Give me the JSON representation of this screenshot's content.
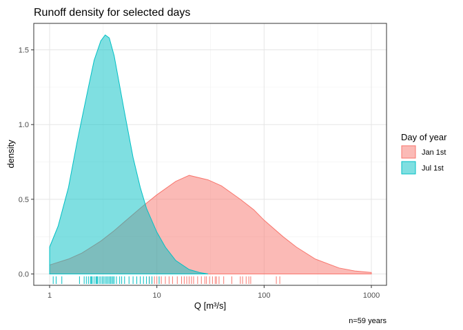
{
  "chart_data": {
    "type": "area",
    "title": "Runoff density for selected days",
    "xlabel": "Q [m³/s]",
    "ylabel": "density",
    "caption": "n=59 years",
    "x_scale": "log10",
    "xlim": [
      1,
      1000
    ],
    "ylim": [
      0,
      1.6
    ],
    "x_ticks": [
      {
        "value": 1,
        "label": "1"
      },
      {
        "value": 10,
        "label": "10"
      },
      {
        "value": 100,
        "label": "100"
      },
      {
        "value": 1000,
        "label": "1000"
      }
    ],
    "y_ticks": [
      {
        "value": 0,
        "label": "0.0"
      },
      {
        "value": 0.5,
        "label": "0.5"
      },
      {
        "value": 1.0,
        "label": "1.0"
      },
      {
        "value": 1.5,
        "label": "1.5"
      }
    ],
    "grid": true,
    "legend": {
      "title": "Day of year",
      "position": "right"
    },
    "series": [
      {
        "name": "Jan 1st",
        "color": "#F8766D",
        "x": [
          1,
          1.5,
          2,
          3,
          4,
          5,
          7,
          10,
          15,
          20,
          30,
          40,
          60,
          80,
          100,
          150,
          200,
          300,
          500,
          700,
          1000
        ],
        "density": [
          0.06,
          0.1,
          0.14,
          0.22,
          0.29,
          0.35,
          0.44,
          0.53,
          0.62,
          0.66,
          0.63,
          0.59,
          0.5,
          0.43,
          0.36,
          0.25,
          0.18,
          0.1,
          0.04,
          0.02,
          0.01
        ],
        "rug": [
          8.5,
          9,
          9.5,
          10,
          10.5,
          11,
          12,
          13,
          14,
          15.5,
          17,
          18,
          19,
          20,
          21,
          22,
          24,
          26,
          28,
          29,
          31,
          33,
          35,
          36,
          38,
          42,
          50,
          60,
          63,
          68,
          72,
          75,
          130,
          140
        ]
      },
      {
        "name": "Jul 1st",
        "color": "#00BFC4",
        "x": [
          1,
          1.2,
          1.5,
          1.8,
          2,
          2.3,
          2.6,
          3,
          3.3,
          3.6,
          4,
          4.5,
          5,
          6,
          7,
          8,
          10,
          12,
          15,
          20,
          25,
          30
        ],
        "density": [
          0.18,
          0.32,
          0.58,
          0.88,
          1.04,
          1.25,
          1.43,
          1.56,
          1.6,
          1.58,
          1.46,
          1.26,
          1.08,
          0.78,
          0.58,
          0.44,
          0.28,
          0.18,
          0.09,
          0.03,
          0.01,
          0.0
        ],
        "rug": [
          1.08,
          1.15,
          1.3,
          1.9,
          2.1,
          2.2,
          2.3,
          2.4,
          2.45,
          2.5,
          2.6,
          2.7,
          2.75,
          2.8,
          2.9,
          3.0,
          3.1,
          3.2,
          3.3,
          3.4,
          3.5,
          3.6,
          3.7,
          3.8,
          3.9,
          4.0,
          4.2,
          4.5,
          4.7,
          5.0,
          5.5,
          6.0,
          6.5,
          7.0,
          7.5,
          8.0,
          8.5,
          9.0,
          10.5
        ]
      }
    ]
  }
}
